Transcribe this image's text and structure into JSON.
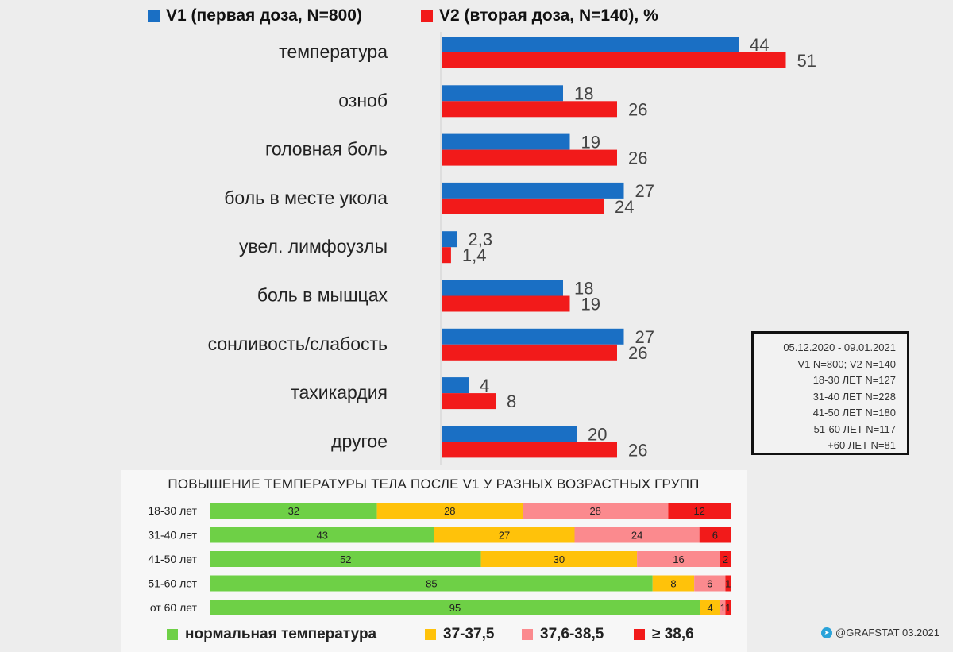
{
  "chart_data": [
    {
      "type": "bar",
      "orientation": "horizontal",
      "categories": [
        "температура",
        "озноб",
        "головная боль",
        "боль в месте укола",
        "увел. лимфоузлы",
        "боль в мышцах",
        "сонливость/слабость",
        "тахикардия",
        "другое"
      ],
      "series": [
        {
          "name": "V1 (первая доза, N=800)",
          "color": "#1a6fc4",
          "values": [
            44,
            18,
            19,
            27,
            2.3,
            18,
            27,
            4,
            20
          ],
          "labels": [
            "44",
            "18",
            "19",
            "27",
            "2,3",
            "18",
            "27",
            "4",
            "20"
          ]
        },
        {
          "name": "V2 (вторая доза, N=140), %",
          "color": "#f21a1a",
          "values": [
            51,
            26,
            26,
            24,
            1.4,
            19,
            26,
            8,
            26
          ],
          "labels": [
            "51",
            "26",
            "26",
            "24",
            "1,4",
            "19",
            "26",
            "8",
            "26"
          ]
        }
      ],
      "legend_position": "top",
      "grid": false
    },
    {
      "type": "bar",
      "orientation": "horizontal",
      "stacked": true,
      "title": "ПОВЫШЕНИЕ ТЕМПЕРАТУРЫ ТЕЛА ПОСЛЕ V1 У РАЗНЫХ ВОЗРАСТНЫХ ГРУПП",
      "categories": [
        "18-30 лет",
        "31-40 лет",
        "41-50 лет",
        "51-60 лет",
        "от 60 лет"
      ],
      "series": [
        {
          "name": "нормальная температура",
          "color": "#6ed046",
          "values": [
            32,
            43,
            52,
            85,
            95
          ]
        },
        {
          "name": "37-37,5",
          "color": "#ffc20a",
          "values": [
            28,
            27,
            30,
            8,
            4
          ]
        },
        {
          "name": "37,6-38,5",
          "color": "#fb8a8e",
          "values": [
            28,
            24,
            16,
            6,
            1
          ]
        },
        {
          "name": "≥ 38,6",
          "color": "#f21a1a",
          "values": [
            12,
            6,
            2,
            1,
            1
          ]
        }
      ],
      "legend_position": "bottom",
      "grid": false
    }
  ],
  "info_box": {
    "lines": [
      "05.12.2020 - 09.01.2021",
      "V1 N=800; V2 N=140",
      "18-30 ЛЕТ  N=127",
      "31-40 ЛЕТ N=228",
      "41-50 ЛЕТ N=180",
      "51-60 ЛЕТ N=117",
      "+60 ЛЕТ N=81"
    ]
  },
  "credit": {
    "text": "@GRAFSTAT 03.2021",
    "icon": "telegram-icon",
    "icon_color": "#2aa3d9"
  }
}
